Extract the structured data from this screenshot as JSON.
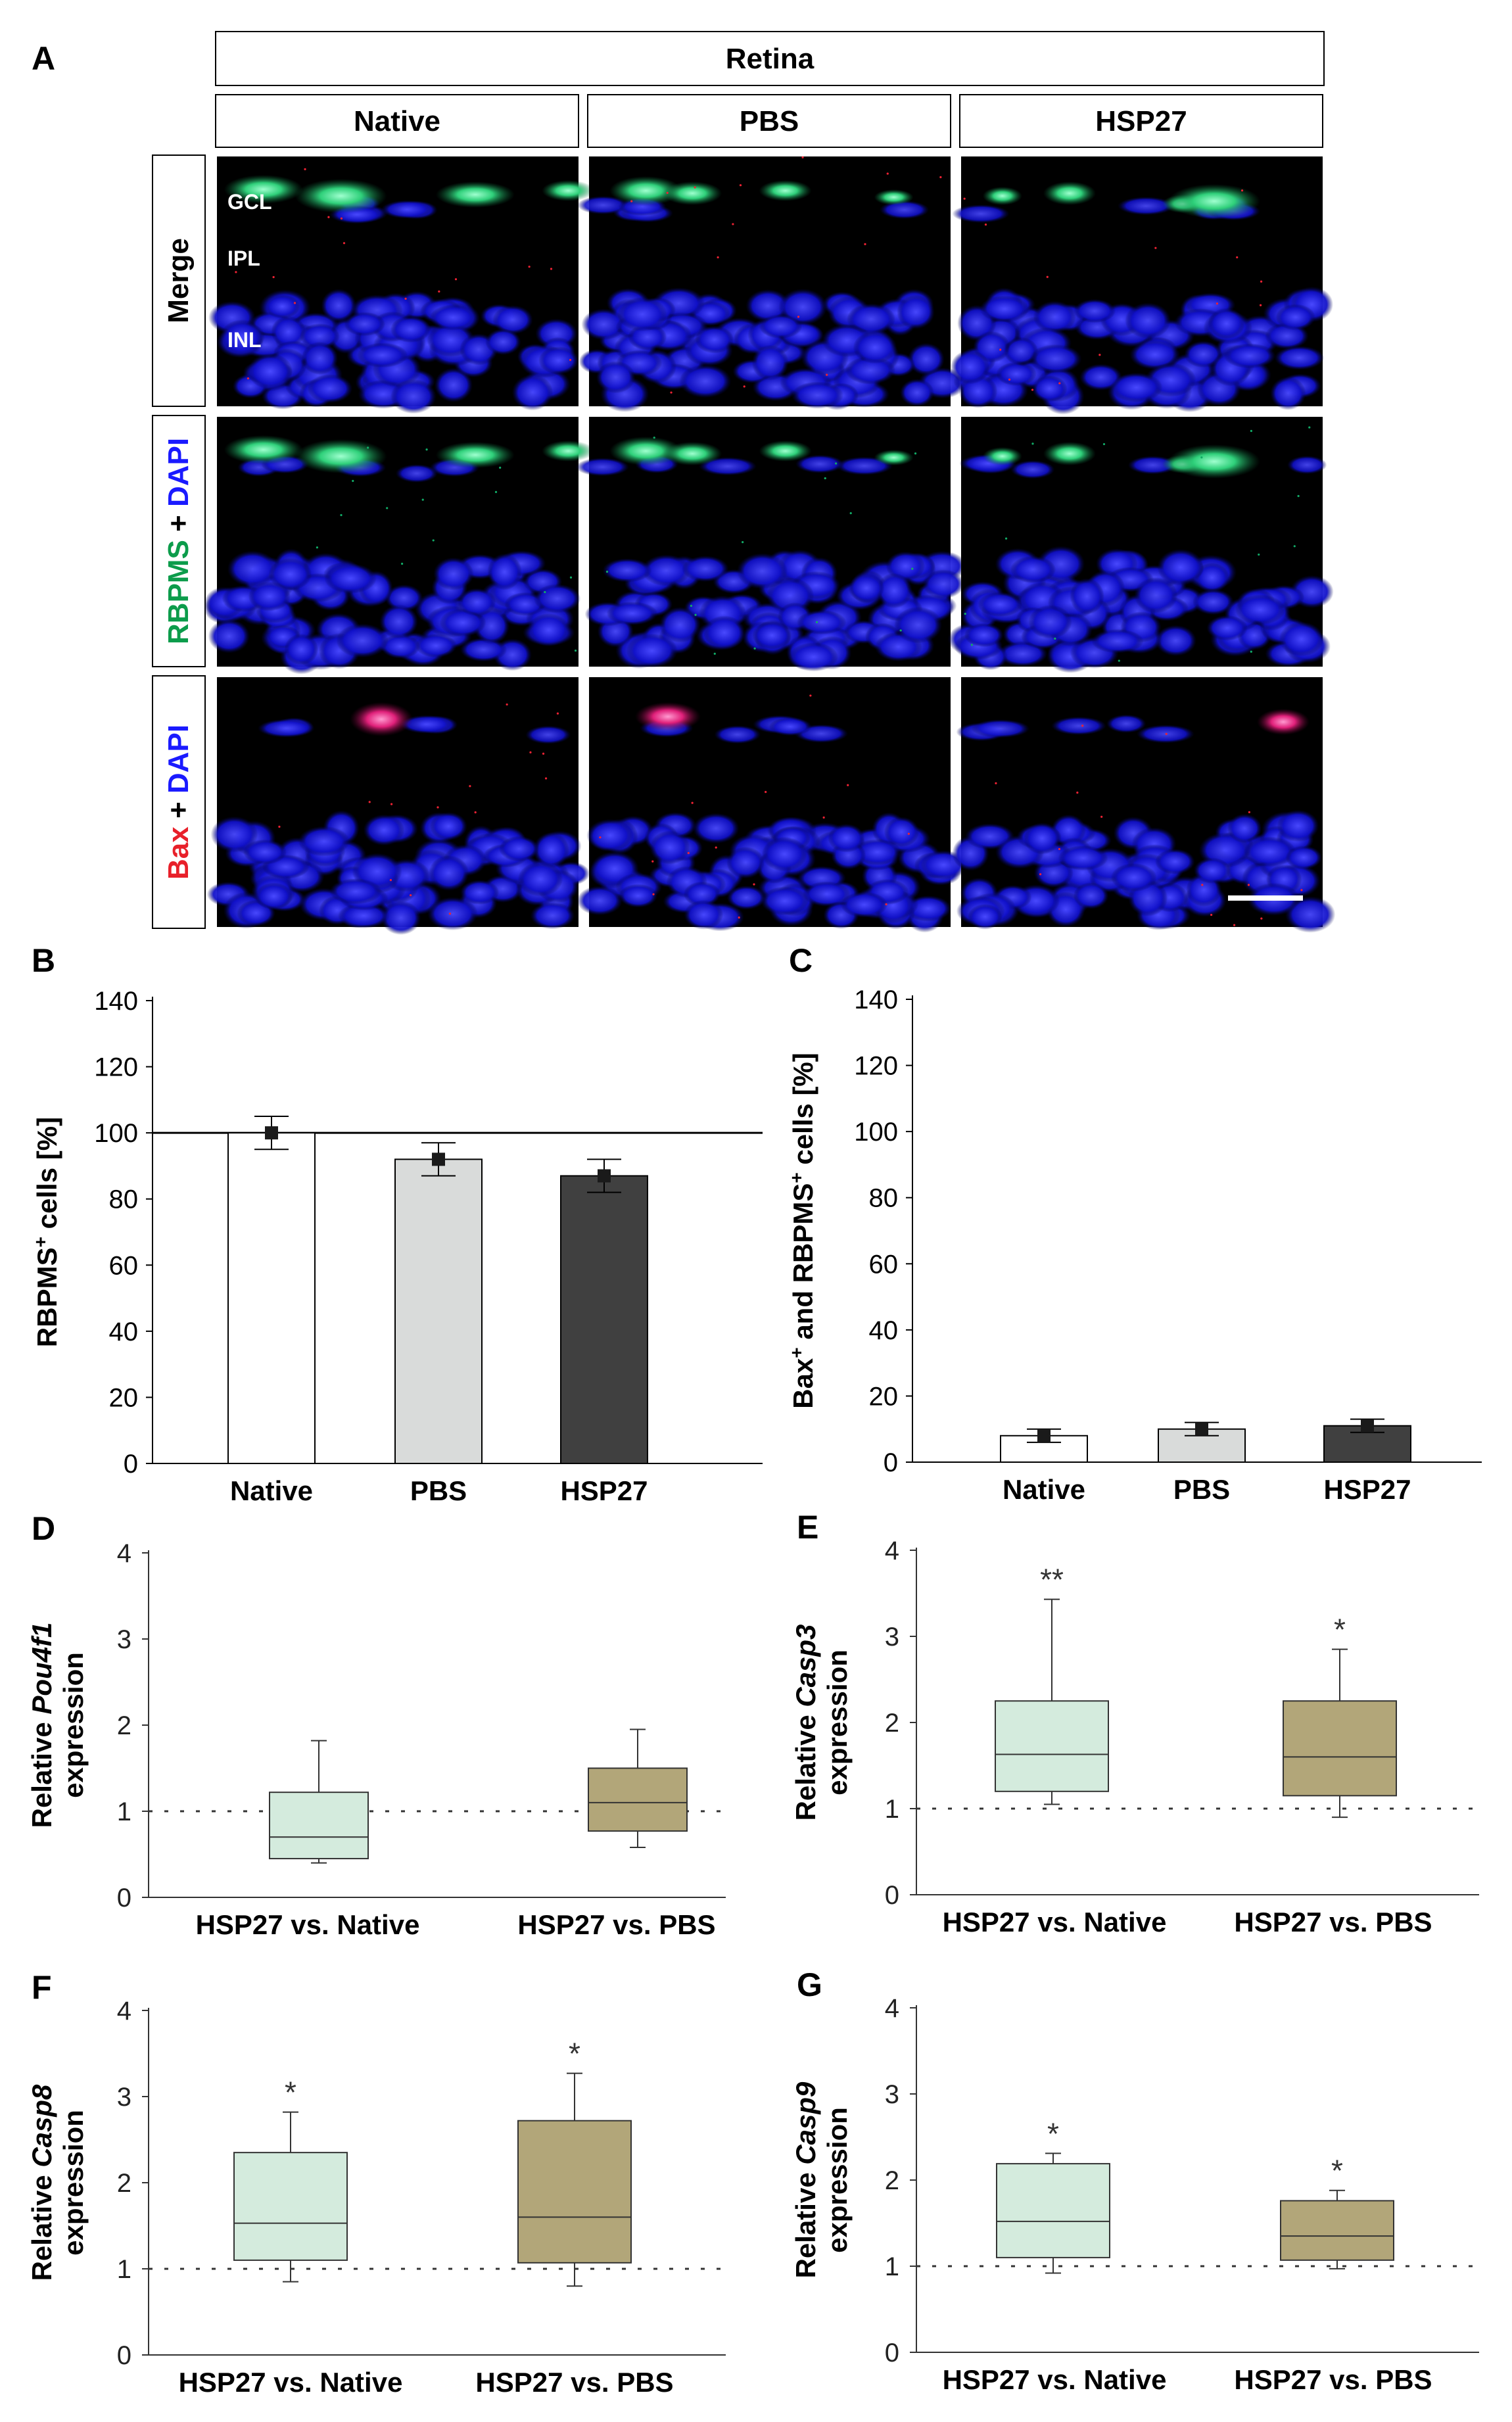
{
  "panel_labels": {
    "A": "A",
    "B": "B",
    "C": "C",
    "D": "D",
    "E": "E",
    "F": "F",
    "G": "G"
  },
  "panelA": {
    "header": "Retina",
    "columns": [
      "Native",
      "PBS",
      "HSP27"
    ],
    "rows": {
      "merge": "Merge",
      "rbpms": {
        "marker": "RBPMS",
        "plus": " + ",
        "dapi": "DAPI"
      },
      "bax": {
        "marker": "Bax",
        "plus": " + ",
        "dapi": "DAPI"
      }
    },
    "layers": [
      "GCL",
      "IPL",
      "INL"
    ]
  },
  "colors": {
    "native_bar": "#ffffff",
    "pbs_bar": "#d9dbda",
    "hsp27_bar": "#404040",
    "box_native": "#d4ebdd",
    "box_pbs": "#b2a679",
    "rbpms_green": "#0c9c4b",
    "dapi_blue": "#1a1aff",
    "bax_red": "#e8202a"
  },
  "chart_data": [
    {
      "id": "B",
      "type": "bar",
      "categories": [
        "Native",
        "PBS",
        "HSP27"
      ],
      "values": [
        100,
        92,
        87
      ],
      "errors": [
        5,
        5,
        5
      ],
      "reference_line": 100,
      "ylim": [
        0,
        140
      ],
      "yticks": [
        0,
        20,
        40,
        60,
        80,
        100,
        120,
        140
      ],
      "ylabel": {
        "pre": "RBPMS",
        "sup": "+",
        "post": " cells  [%]"
      }
    },
    {
      "id": "C",
      "type": "bar",
      "categories": [
        "Native",
        "PBS",
        "HSP27"
      ],
      "values": [
        8,
        10,
        11
      ],
      "errors": [
        2,
        2,
        2
      ],
      "ylim": [
        0,
        140
      ],
      "yticks": [
        0,
        20,
        40,
        60,
        80,
        100,
        120,
        140
      ],
      "ylabel": {
        "pre": "Bax",
        "sup1": "+",
        "mid": " and RBPMS",
        "sup2": "+",
        "post": " cells  [%]"
      }
    },
    {
      "id": "D",
      "type": "box",
      "gene": "Pou4f1",
      "ylabel": {
        "pre": "Relative ",
        "gene": "Pou4f1",
        "line2": "expression"
      },
      "categories": [
        "HSP27 vs. Native",
        "HSP27 vs. PBS"
      ],
      "ylim": [
        0,
        4
      ],
      "yticks": [
        0,
        1,
        2,
        3,
        4
      ],
      "reference": 1,
      "boxes": [
        {
          "min": 0.4,
          "q1": 0.45,
          "median": 0.7,
          "q3": 1.22,
          "max": 1.82,
          "sig": ""
        },
        {
          "min": 0.58,
          "q1": 0.77,
          "median": 1.1,
          "q3": 1.5,
          "max": 1.95,
          "sig": ""
        }
      ]
    },
    {
      "id": "E",
      "type": "box",
      "gene": "Casp3",
      "ylabel": {
        "pre": "Relative ",
        "gene": "Casp3",
        "line2": "expression"
      },
      "categories": [
        "HSP27 vs. Native",
        "HSP27 vs. PBS"
      ],
      "ylim": [
        0,
        4
      ],
      "yticks": [
        0,
        1,
        2,
        3,
        4
      ],
      "reference": 1,
      "boxes": [
        {
          "min": 1.05,
          "q1": 1.2,
          "median": 1.63,
          "q3": 2.25,
          "max": 3.43,
          "sig": "**"
        },
        {
          "min": 0.9,
          "q1": 1.15,
          "median": 1.6,
          "q3": 2.25,
          "max": 2.85,
          "sig": "*"
        }
      ]
    },
    {
      "id": "F",
      "type": "box",
      "gene": "Casp8",
      "ylabel": {
        "pre": "Relative ",
        "gene": "Casp8",
        "line2": "expression"
      },
      "categories": [
        "HSP27 vs. Native",
        "HSP27 vs. PBS"
      ],
      "ylim": [
        0,
        4
      ],
      "yticks": [
        0,
        1,
        2,
        3,
        4
      ],
      "reference": 1,
      "boxes": [
        {
          "min": 0.85,
          "q1": 1.1,
          "median": 1.53,
          "q3": 2.35,
          "max": 2.82,
          "sig": "*"
        },
        {
          "min": 0.8,
          "q1": 1.07,
          "median": 1.6,
          "q3": 2.72,
          "max": 3.27,
          "sig": "*"
        }
      ]
    },
    {
      "id": "G",
      "type": "box",
      "gene": "Casp9",
      "ylabel": {
        "pre": "Relative ",
        "gene": "Casp9",
        "line2": "expression"
      },
      "categories": [
        "HSP27 vs. Native",
        "HSP27 vs. PBS"
      ],
      "ylim": [
        0,
        4
      ],
      "yticks": [
        0,
        1,
        2,
        3,
        4
      ],
      "reference": 1,
      "boxes": [
        {
          "min": 0.92,
          "q1": 1.1,
          "median": 1.52,
          "q3": 2.19,
          "max": 2.31,
          "sig": "*"
        },
        {
          "min": 0.97,
          "q1": 1.07,
          "median": 1.35,
          "q3": 1.76,
          "max": 1.88,
          "sig": "*"
        }
      ]
    }
  ]
}
